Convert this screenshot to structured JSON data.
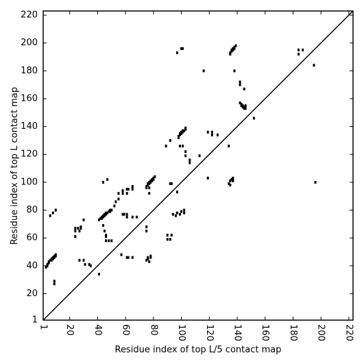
{
  "chart_data": {
    "type": "scatter",
    "x_label": "Residue index of top L/5 contact map",
    "y_label": "Residue index of top L contact map",
    "color": "#000000",
    "xlim": [
      1,
      223
    ],
    "ylim": [
      1,
      223
    ],
    "xticks": [
      1,
      20,
      40,
      60,
      80,
      100,
      120,
      140,
      160,
      180,
      200,
      220
    ],
    "yticks": [
      1,
      20,
      40,
      60,
      80,
      100,
      120,
      140,
      160,
      180,
      200,
      220
    ],
    "x": [
      3,
      4,
      4,
      5,
      5,
      6,
      7,
      7,
      8,
      8,
      9,
      9,
      10,
      10,
      9,
      9,
      6,
      8,
      10,
      24,
      24,
      24,
      26,
      27,
      28,
      28,
      30,
      27,
      30,
      31,
      34,
      35,
      41,
      41,
      42,
      43,
      43,
      44,
      44,
      45,
      45,
      46,
      46,
      47,
      48,
      49,
      49,
      50,
      44,
      45,
      46,
      46,
      46,
      48,
      50,
      44,
      47,
      52,
      53,
      55,
      55,
      58,
      58,
      61,
      61,
      62,
      65,
      65,
      57,
      58,
      59,
      61,
      61,
      62,
      61,
      65,
      65,
      68,
      75,
      76,
      76,
      77,
      77,
      78,
      78,
      79,
      79,
      80,
      80,
      81,
      75,
      77,
      77,
      75,
      75,
      75,
      76,
      76,
      77,
      78,
      78,
      89,
      92,
      93,
      92,
      90,
      90,
      92,
      93,
      94,
      96,
      97,
      99,
      100,
      102,
      102,
      97,
      97,
      100,
      101,
      98,
      98,
      99,
      99,
      100,
      100,
      101,
      101,
      102,
      103,
      103,
      99,
      101,
      103,
      103,
      106,
      106,
      113,
      116,
      119,
      119,
      122,
      122,
      126,
      134,
      135,
      135,
      136,
      137,
      137,
      134,
      135,
      135,
      136,
      136,
      137,
      137,
      138,
      138,
      139,
      138,
      142,
      142,
      145,
      142,
      143,
      143,
      144,
      144,
      145,
      145,
      146,
      146,
      152,
      184,
      184,
      187,
      195,
      196
    ],
    "y": [
      39,
      40,
      41,
      42,
      43,
      44,
      44,
      45,
      45,
      46,
      46,
      47,
      47,
      48,
      29,
      27,
      76,
      78,
      80,
      67,
      65,
      61,
      67,
      65,
      68,
      67,
      73,
      44,
      44,
      41,
      41,
      40,
      34,
      73,
      74,
      74,
      75,
      75,
      76,
      76,
      77,
      77,
      78,
      78,
      79,
      79,
      80,
      80,
      69,
      65,
      62,
      61,
      58,
      58,
      58,
      100,
      102,
      83,
      86,
      88,
      92,
      92,
      94,
      92,
      95,
      95,
      95,
      97,
      48,
      77,
      77,
      77,
      75,
      46,
      46,
      75,
      46,
      75,
      97,
      98,
      99,
      99,
      100,
      100,
      101,
      101,
      102,
      102,
      103,
      104,
      96,
      96,
      92,
      68,
      65,
      44,
      45,
      46,
      43,
      46,
      47,
      126,
      99,
      99,
      130,
      62,
      59,
      59,
      62,
      77,
      76,
      78,
      77,
      79,
      78,
      80,
      93,
      193,
      196,
      196,
      132,
      133,
      134,
      135,
      135,
      136,
      136,
      137,
      137,
      138,
      139,
      126,
      126,
      122,
      119,
      116,
      114,
      119,
      180,
      103,
      136,
      134,
      136,
      134,
      99,
      98,
      101,
      102,
      103,
      101,
      126,
      192,
      193,
      194,
      195,
      195,
      196,
      196,
      197,
      198,
      180,
      172,
      170,
      167,
      157,
      156,
      155,
      155,
      154,
      154,
      153,
      153,
      155,
      146,
      192,
      195,
      195,
      184,
      100
    ]
  }
}
